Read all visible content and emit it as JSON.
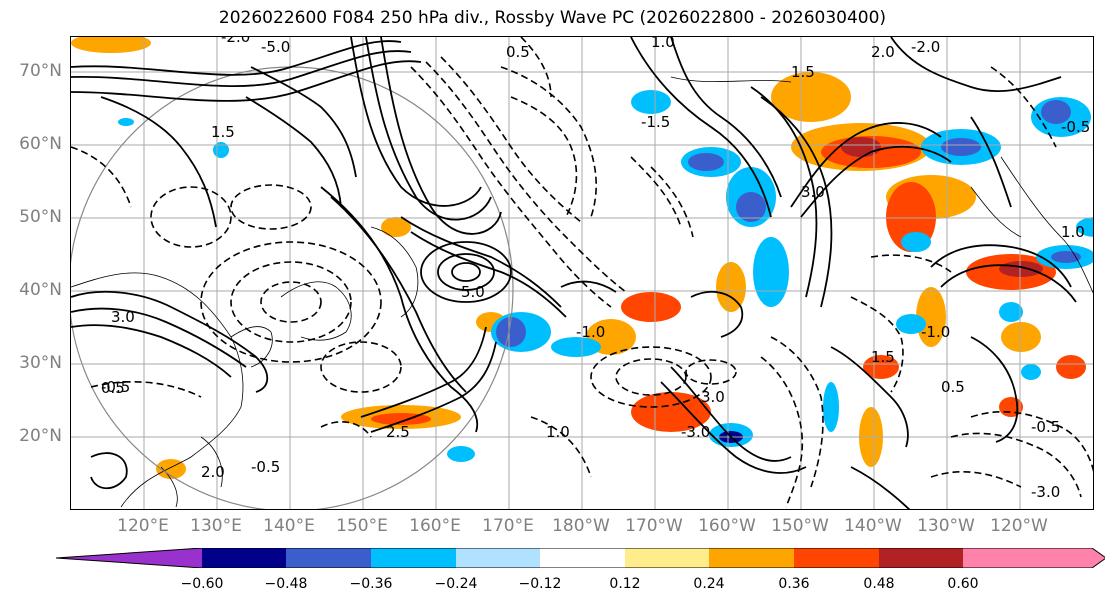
{
  "title": "2026022600 F084 250 hPa div., Rossby Wave PC (2026022800 - 2026030400)",
  "map": {
    "lat_range": [
      10,
      75
    ],
    "lon_range": [
      110,
      250
    ],
    "lat_labels": [
      "20°N",
      "30°N",
      "40°N",
      "50°N",
      "60°N",
      "70°N"
    ],
    "lon_labels": [
      "120°E",
      "130°E",
      "140°E",
      "150°E",
      "160°E",
      "170°E",
      "180°W",
      "170°W",
      "160°W",
      "150°W",
      "140°W",
      "130°W",
      "120°W"
    ],
    "contour_labels": [
      "-0.5",
      "0.5",
      "1.0",
      "-1.0",
      "1.5",
      "-1.5",
      "2.0",
      "-2.0",
      "2.5",
      "3.0",
      "5.0",
      "-5.0",
      "-3.0",
      "-0.5",
      "0.5",
      "1.5",
      "2.0",
      "3.0",
      "1.0",
      "-1.0",
      "0.5",
      "-0.5",
      "-2.0",
      "1.5",
      "-3.0",
      "3.0",
      "1.0",
      "-0.5"
    ]
  },
  "colorbar": {
    "colors": [
      "#9932cc",
      "#00008b",
      "#3a5fcd",
      "#00bfff",
      "#b0e2ff",
      "#ffffff",
      "#ffec8b",
      "#ffa500",
      "#ff4500",
      "#b22222",
      "#ff82ab"
    ],
    "ticks": [
      "−0.60",
      "−0.48",
      "−0.36",
      "−0.24",
      "−0.12",
      "0.12",
      "0.24",
      "0.36",
      "0.48",
      "0.60"
    ]
  }
}
